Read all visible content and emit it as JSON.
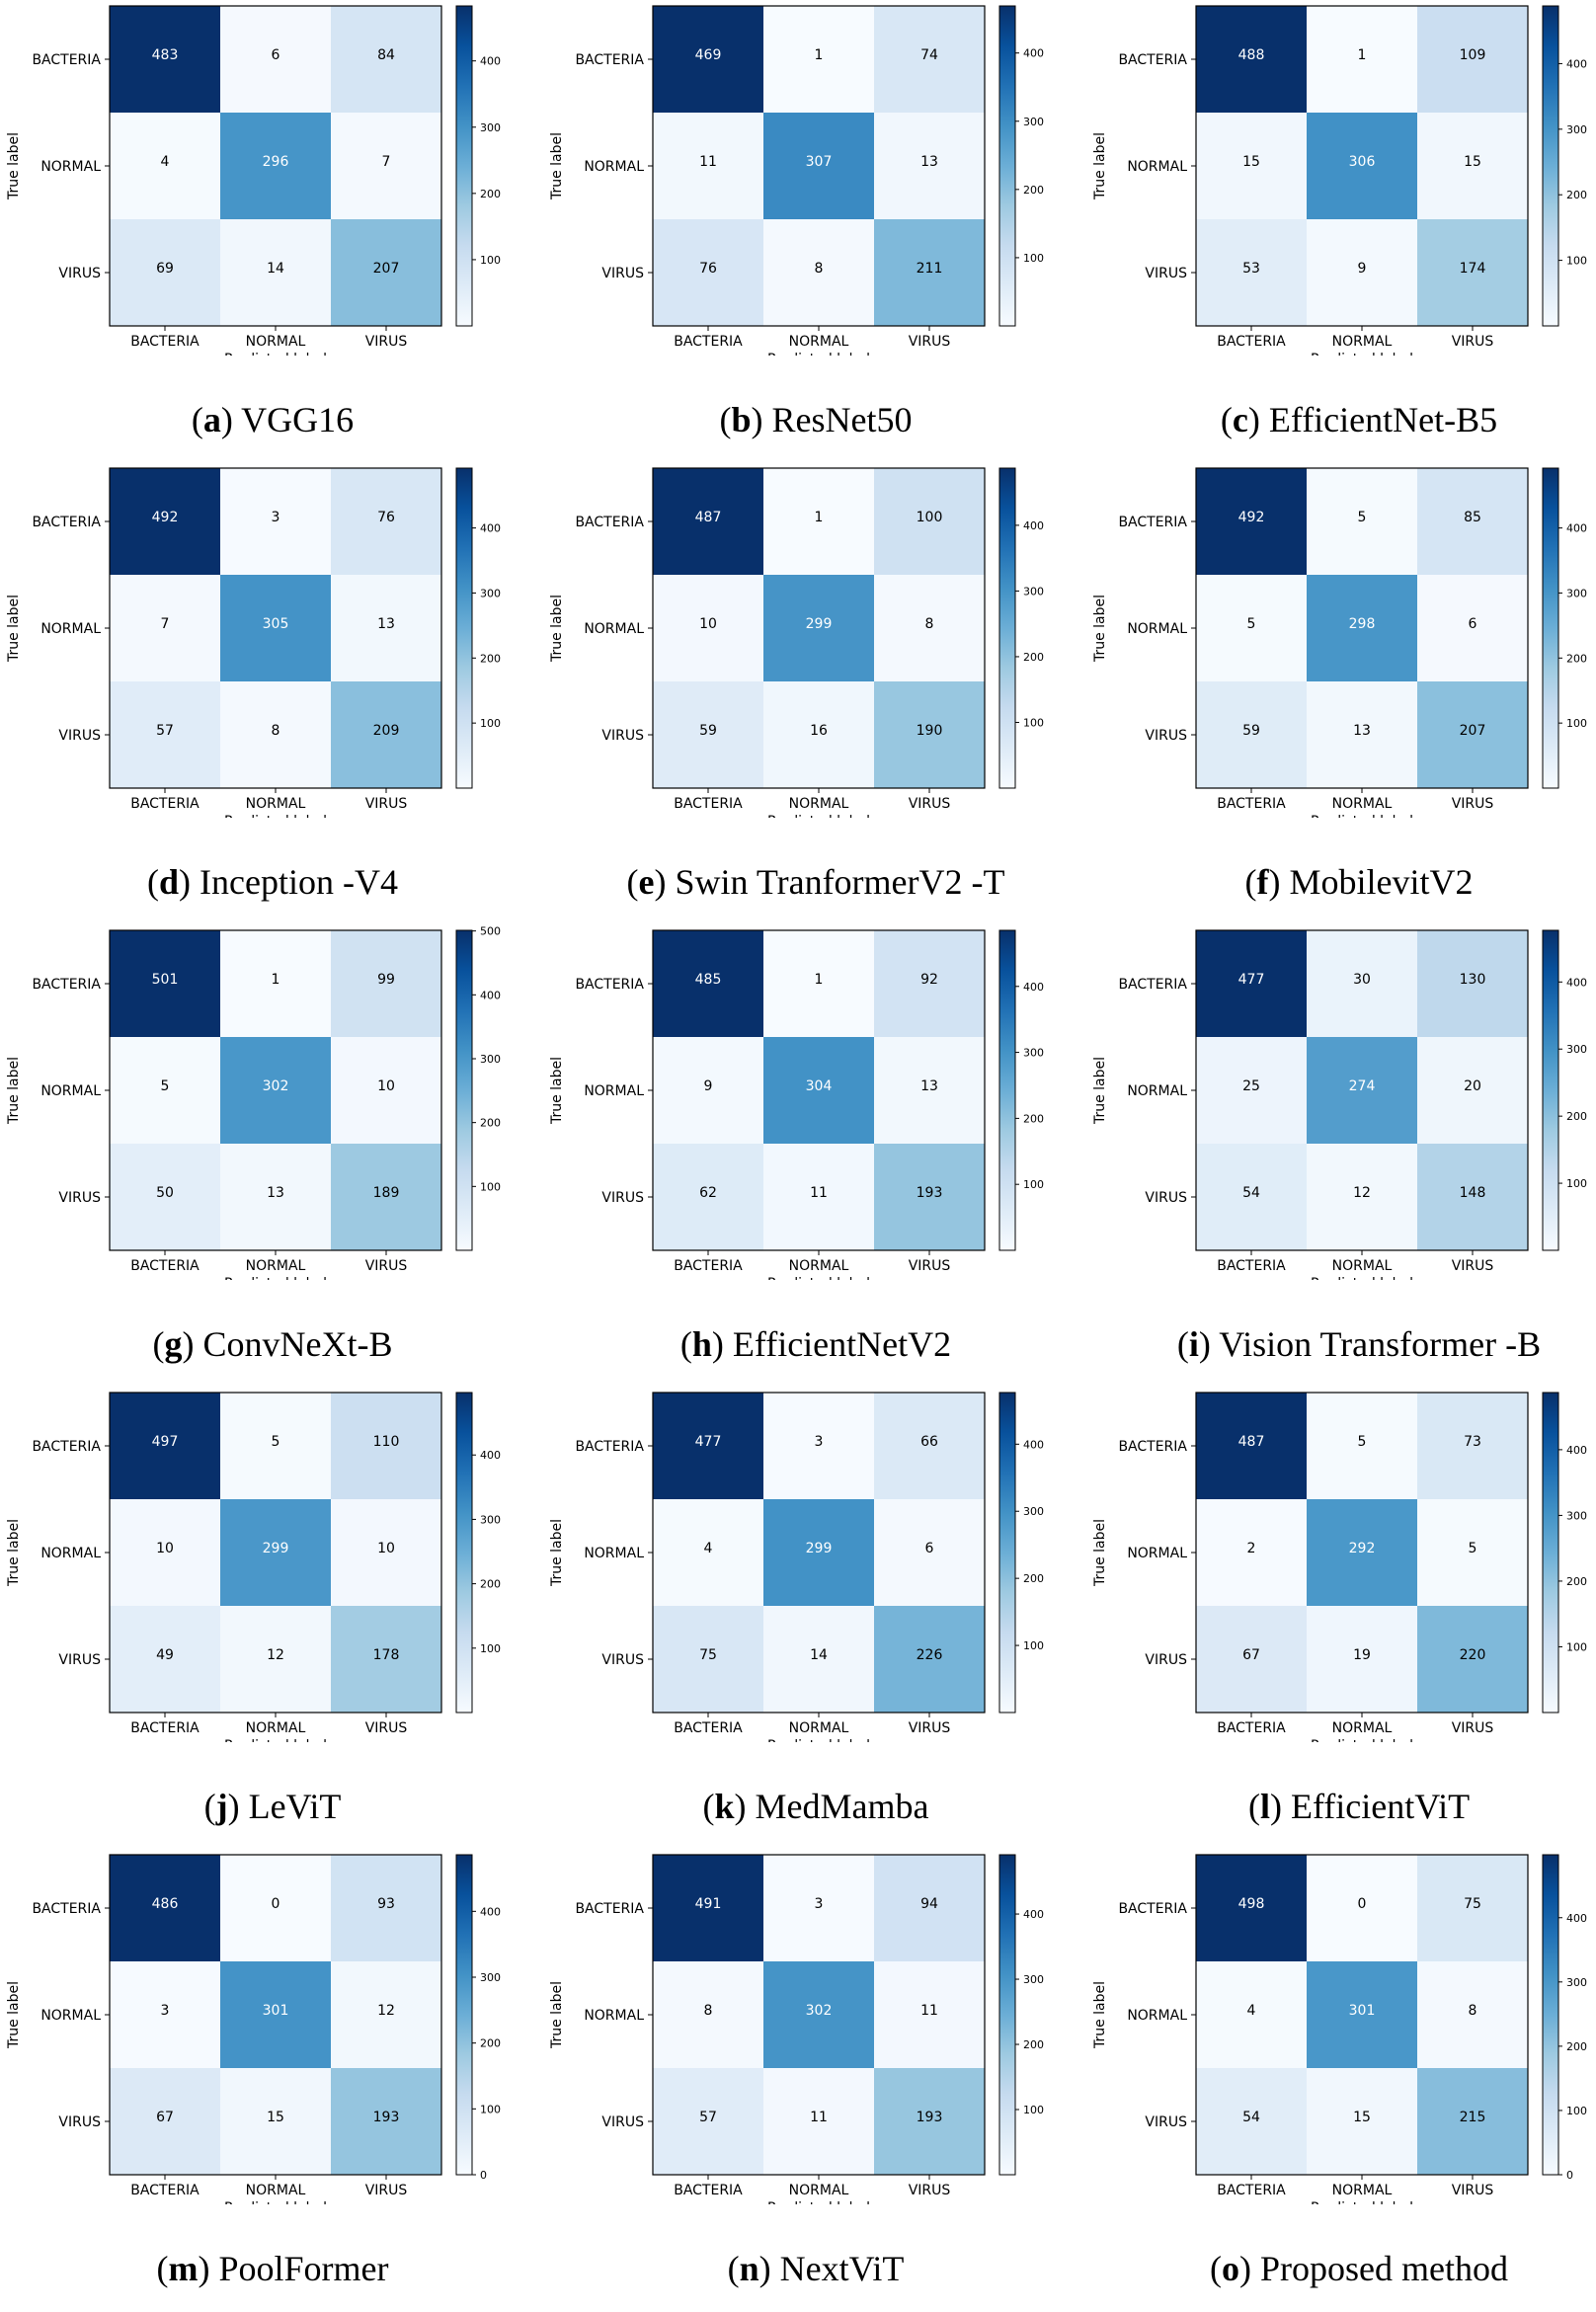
{
  "figure": {
    "class_labels": [
      "BACTERIA",
      "NORMAL",
      "VIRUS"
    ],
    "xlabel": "Predicted label",
    "ylabel": "True label",
    "colormap": [
      "#f7fbff",
      "#deebf7",
      "#c6dbef",
      "#9ecae1",
      "#6baed6",
      "#4292c6",
      "#2171b5",
      "#08519c",
      "#08306b"
    ]
  },
  "chart_data": [
    {
      "type": "heatmap",
      "letter": "a",
      "name": "VGG16",
      "matrix": [
        [
          483,
          6,
          84
        ],
        [
          4,
          296,
          7
        ],
        [
          69,
          14,
          207
        ]
      ],
      "vmax": 483,
      "colorbar_ticks": [
        100,
        200,
        300,
        400
      ]
    },
    {
      "type": "heatmap",
      "letter": "b",
      "name": "ResNet50",
      "matrix": [
        [
          469,
          1,
          74
        ],
        [
          11,
          307,
          13
        ],
        [
          76,
          8,
          211
        ]
      ],
      "vmax": 469,
      "colorbar_ticks": [
        100,
        200,
        300,
        400
      ]
    },
    {
      "type": "heatmap",
      "letter": "c",
      "name": "EfficientNet-B5",
      "matrix": [
        [
          488,
          1,
          109
        ],
        [
          15,
          306,
          15
        ],
        [
          53,
          9,
          174
        ]
      ],
      "vmax": 488,
      "colorbar_ticks": [
        100,
        200,
        300,
        400
      ]
    },
    {
      "type": "heatmap",
      "letter": "d",
      "name": "Inception -V4",
      "matrix": [
        [
          492,
          3,
          76
        ],
        [
          7,
          305,
          13
        ],
        [
          57,
          8,
          209
        ]
      ],
      "vmax": 492,
      "colorbar_ticks": [
        100,
        200,
        300,
        400
      ]
    },
    {
      "type": "heatmap",
      "letter": "e",
      "name": "Swin TranformerV2  -T",
      "matrix": [
        [
          487,
          1,
          100
        ],
        [
          10,
          299,
          8
        ],
        [
          59,
          16,
          190
        ]
      ],
      "vmax": 487,
      "colorbar_ticks": [
        100,
        200,
        300,
        400
      ]
    },
    {
      "type": "heatmap",
      "letter": "f",
      "name": "MobilevitV2",
      "matrix": [
        [
          492,
          5,
          85
        ],
        [
          5,
          298,
          6
        ],
        [
          59,
          13,
          207
        ]
      ],
      "vmax": 492,
      "colorbar_ticks": [
        100,
        200,
        300,
        400
      ]
    },
    {
      "type": "heatmap",
      "letter": "g",
      "name": "ConvNeXt-B",
      "matrix": [
        [
          501,
          1,
          99
        ],
        [
          5,
          302,
          10
        ],
        [
          50,
          13,
          189
        ]
      ],
      "vmax": 501,
      "colorbar_ticks": [
        100,
        200,
        300,
        400,
        500
      ]
    },
    {
      "type": "heatmap",
      "letter": "h",
      "name": "EfficientNetV2",
      "matrix": [
        [
          485,
          1,
          92
        ],
        [
          9,
          304,
          13
        ],
        [
          62,
          11,
          193
        ]
      ],
      "vmax": 485,
      "colorbar_ticks": [
        100,
        200,
        300,
        400
      ]
    },
    {
      "type": "heatmap",
      "letter": "i",
      "name": "Vision Transformer  -B",
      "matrix": [
        [
          477,
          30,
          130
        ],
        [
          25,
          274,
          20
        ],
        [
          54,
          12,
          148
        ]
      ],
      "vmax": 477,
      "colorbar_ticks": [
        100,
        200,
        300,
        400
      ]
    },
    {
      "type": "heatmap",
      "letter": "j",
      "name": "LeViT",
      "matrix": [
        [
          497,
          5,
          110
        ],
        [
          10,
          299,
          10
        ],
        [
          49,
          12,
          178
        ]
      ],
      "vmax": 497,
      "colorbar_ticks": [
        100,
        200,
        300,
        400
      ]
    },
    {
      "type": "heatmap",
      "letter": "k",
      "name": "MedMamba",
      "matrix": [
        [
          477,
          3,
          66
        ],
        [
          4,
          299,
          6
        ],
        [
          75,
          14,
          226
        ]
      ],
      "vmax": 477,
      "colorbar_ticks": [
        100,
        200,
        300,
        400
      ]
    },
    {
      "type": "heatmap",
      "letter": "l",
      "name": "EfficientViT",
      "matrix": [
        [
          487,
          5,
          73
        ],
        [
          2,
          292,
          5
        ],
        [
          67,
          19,
          220
        ]
      ],
      "vmax": 487,
      "colorbar_ticks": [
        100,
        200,
        300,
        400
      ]
    },
    {
      "type": "heatmap",
      "letter": "m",
      "name": "PoolFormer",
      "matrix": [
        [
          486,
          0,
          93
        ],
        [
          3,
          301,
          12
        ],
        [
          67,
          15,
          193
        ]
      ],
      "vmax": 486,
      "colorbar_ticks": [
        0,
        100,
        200,
        300,
        400
      ]
    },
    {
      "type": "heatmap",
      "letter": "n",
      "name": "NextViT",
      "matrix": [
        [
          491,
          3,
          94
        ],
        [
          8,
          302,
          11
        ],
        [
          57,
          11,
          193
        ]
      ],
      "vmax": 491,
      "colorbar_ticks": [
        100,
        200,
        300,
        400
      ]
    },
    {
      "type": "heatmap",
      "letter": "o",
      "name": "Proposed method",
      "matrix": [
        [
          498,
          0,
          75
        ],
        [
          4,
          301,
          8
        ],
        [
          54,
          15,
          215
        ]
      ],
      "vmax": 498,
      "colorbar_ticks": [
        0,
        100,
        200,
        300,
        400
      ]
    }
  ]
}
